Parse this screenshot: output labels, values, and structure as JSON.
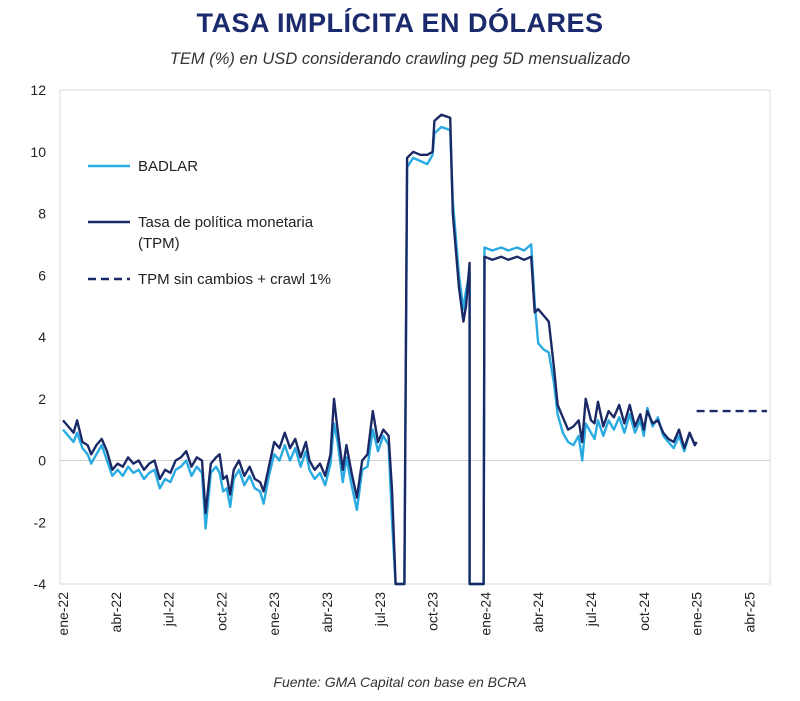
{
  "chart_data": {
    "type": "line",
    "title": "TASA IMPLÍCITA EN DÓLARES",
    "subtitle": "TEM (%) en USD considerando crawling peg 5D mensualizado",
    "source": "Fuente: GMA Capital con base en BCRA",
    "xlabel": "",
    "ylabel": "",
    "ylim": [
      -4,
      12
    ],
    "yticks": [
      -4,
      -2,
      0,
      2,
      4,
      6,
      8,
      10,
      12
    ],
    "xlim": [
      0,
      39
    ],
    "xticks": [
      {
        "x": 0,
        "label": "ene-22"
      },
      {
        "x": 3,
        "label": "abr-22"
      },
      {
        "x": 6,
        "label": "jul-22"
      },
      {
        "x": 9,
        "label": "oct-22"
      },
      {
        "x": 12,
        "label": "ene-23"
      },
      {
        "x": 15,
        "label": "abr-23"
      },
      {
        "x": 18,
        "label": "jul-23"
      },
      {
        "x": 21,
        "label": "oct-23"
      },
      {
        "x": 24,
        "label": "ene-24"
      },
      {
        "x": 27,
        "label": "abr-24"
      },
      {
        "x": 30,
        "label": "jul-24"
      },
      {
        "x": 33,
        "label": "oct-24"
      },
      {
        "x": 36,
        "label": "ene-25"
      },
      {
        "x": 39,
        "label": "abr-25"
      }
    ],
    "x_unit": "months since ene-22",
    "grid": "horizontal zero line only",
    "legend_position": "upper-left",
    "series": [
      {
        "name": "BADLAR",
        "color": "#29abe2",
        "style": "solid",
        "points": [
          [
            0,
            1.0
          ],
          [
            0.3,
            0.8
          ],
          [
            0.6,
            0.6
          ],
          [
            0.8,
            0.9
          ],
          [
            1.1,
            0.4
          ],
          [
            1.4,
            0.2
          ],
          [
            1.6,
            -0.1
          ],
          [
            1.9,
            0.2
          ],
          [
            2.2,
            0.5
          ],
          [
            2.5,
            0.0
          ],
          [
            2.8,
            -0.5
          ],
          [
            3.1,
            -0.3
          ],
          [
            3.4,
            -0.5
          ],
          [
            3.7,
            -0.2
          ],
          [
            4.0,
            -0.4
          ],
          [
            4.3,
            -0.3
          ],
          [
            4.6,
            -0.6
          ],
          [
            4.9,
            -0.4
          ],
          [
            5.2,
            -0.3
          ],
          [
            5.5,
            -0.9
          ],
          [
            5.8,
            -0.6
          ],
          [
            6.1,
            -0.7
          ],
          [
            6.4,
            -0.3
          ],
          [
            6.7,
            -0.2
          ],
          [
            7.0,
            0.0
          ],
          [
            7.3,
            -0.5
          ],
          [
            7.6,
            -0.2
          ],
          [
            7.9,
            -0.4
          ],
          [
            8.1,
            -2.2
          ],
          [
            8.4,
            -0.4
          ],
          [
            8.7,
            -0.2
          ],
          [
            8.9,
            -0.4
          ],
          [
            9.1,
            -1.0
          ],
          [
            9.3,
            -0.9
          ],
          [
            9.5,
            -1.5
          ],
          [
            9.7,
            -0.6
          ],
          [
            10.0,
            -0.3
          ],
          [
            10.3,
            -0.8
          ],
          [
            10.6,
            -0.5
          ],
          [
            10.9,
            -0.9
          ],
          [
            11.2,
            -1.0
          ],
          [
            11.4,
            -1.4
          ],
          [
            11.7,
            -0.5
          ],
          [
            12.0,
            0.2
          ],
          [
            12.3,
            0.0
          ],
          [
            12.6,
            0.5
          ],
          [
            12.9,
            0.0
          ],
          [
            13.2,
            0.4
          ],
          [
            13.5,
            -0.2
          ],
          [
            13.8,
            0.3
          ],
          [
            14.0,
            -0.3
          ],
          [
            14.3,
            -0.6
          ],
          [
            14.6,
            -0.4
          ],
          [
            14.9,
            -0.8
          ],
          [
            15.2,
            -0.1
          ],
          [
            15.4,
            1.2
          ],
          [
            15.6,
            0.6
          ],
          [
            15.9,
            -0.7
          ],
          [
            16.1,
            0.1
          ],
          [
            16.4,
            -0.8
          ],
          [
            16.7,
            -1.6
          ],
          [
            17.0,
            -0.3
          ],
          [
            17.3,
            -0.2
          ],
          [
            17.6,
            1.0
          ],
          [
            17.9,
            0.3
          ],
          [
            18.2,
            0.8
          ],
          [
            18.5,
            0.5
          ],
          [
            18.7,
            -2.0
          ],
          [
            18.9,
            -4.0
          ],
          [
            19.4,
            -4.0
          ],
          [
            19.55,
            9.5
          ],
          [
            19.9,
            9.8
          ],
          [
            20.3,
            9.7
          ],
          [
            20.7,
            9.6
          ],
          [
            21.0,
            9.9
          ],
          [
            21.1,
            10.6
          ],
          [
            21.5,
            10.8
          ],
          [
            22.0,
            10.7
          ],
          [
            22.15,
            8.4
          ],
          [
            22.5,
            6.0
          ],
          [
            22.75,
            4.9
          ],
          [
            22.9,
            5.5
          ],
          [
            23.1,
            6.1
          ],
          [
            23.1,
            -4.0
          ],
          [
            23.9,
            -4.0
          ],
          [
            23.95,
            6.9
          ],
          [
            24.4,
            6.8
          ],
          [
            24.9,
            6.9
          ],
          [
            25.3,
            6.8
          ],
          [
            25.8,
            6.9
          ],
          [
            26.2,
            6.8
          ],
          [
            26.6,
            7.0
          ],
          [
            26.8,
            5.1
          ],
          [
            27.0,
            3.8
          ],
          [
            27.3,
            3.6
          ],
          [
            27.6,
            3.5
          ],
          [
            27.9,
            2.5
          ],
          [
            28.1,
            1.5
          ],
          [
            28.4,
            0.9
          ],
          [
            28.7,
            0.6
          ],
          [
            29.0,
            0.5
          ],
          [
            29.3,
            0.8
          ],
          [
            29.5,
            0.0
          ],
          [
            29.7,
            1.2
          ],
          [
            30.0,
            0.9
          ],
          [
            30.2,
            0.7
          ],
          [
            30.4,
            1.3
          ],
          [
            30.7,
            0.8
          ],
          [
            31.0,
            1.3
          ],
          [
            31.3,
            1.0
          ],
          [
            31.6,
            1.4
          ],
          [
            31.9,
            0.9
          ],
          [
            32.2,
            1.5
          ],
          [
            32.5,
            0.9
          ],
          [
            32.8,
            1.3
          ],
          [
            33.0,
            0.8
          ],
          [
            33.2,
            1.7
          ],
          [
            33.5,
            1.1
          ],
          [
            33.8,
            1.4
          ],
          [
            34.1,
            0.8
          ],
          [
            34.4,
            0.6
          ],
          [
            34.7,
            0.4
          ],
          [
            35.0,
            0.8
          ],
          [
            35.3,
            0.3
          ],
          [
            35.6,
            0.9
          ],
          [
            35.9,
            0.5
          ],
          [
            36.0,
            0.6
          ]
        ]
      },
      {
        "name": "Tasa de política monetaria (TPM)",
        "legend_lines": [
          "Tasa de política monetaria",
          "(TPM)"
        ],
        "color": "#1b2a66",
        "style": "solid",
        "points": [
          [
            0,
            1.3
          ],
          [
            0.3,
            1.1
          ],
          [
            0.6,
            0.9
          ],
          [
            0.8,
            1.3
          ],
          [
            1.1,
            0.6
          ],
          [
            1.4,
            0.5
          ],
          [
            1.6,
            0.2
          ],
          [
            1.9,
            0.5
          ],
          [
            2.2,
            0.7
          ],
          [
            2.5,
            0.3
          ],
          [
            2.8,
            -0.3
          ],
          [
            3.1,
            -0.1
          ],
          [
            3.4,
            -0.2
          ],
          [
            3.7,
            0.1
          ],
          [
            4.0,
            -0.1
          ],
          [
            4.3,
            0.0
          ],
          [
            4.6,
            -0.3
          ],
          [
            4.9,
            -0.1
          ],
          [
            5.2,
            0.0
          ],
          [
            5.5,
            -0.6
          ],
          [
            5.8,
            -0.3
          ],
          [
            6.1,
            -0.4
          ],
          [
            6.4,
            0.0
          ],
          [
            6.7,
            0.1
          ],
          [
            7.0,
            0.3
          ],
          [
            7.3,
            -0.2
          ],
          [
            7.6,
            0.1
          ],
          [
            7.9,
            0.0
          ],
          [
            8.1,
            -1.7
          ],
          [
            8.4,
            -0.1
          ],
          [
            8.7,
            0.1
          ],
          [
            8.9,
            0.2
          ],
          [
            9.1,
            -0.6
          ],
          [
            9.3,
            -0.5
          ],
          [
            9.5,
            -1.1
          ],
          [
            9.7,
            -0.3
          ],
          [
            10.0,
            0.0
          ],
          [
            10.3,
            -0.5
          ],
          [
            10.6,
            -0.2
          ],
          [
            10.9,
            -0.6
          ],
          [
            11.2,
            -0.7
          ],
          [
            11.4,
            -1.0
          ],
          [
            11.7,
            -0.2
          ],
          [
            12.0,
            0.6
          ],
          [
            12.3,
            0.4
          ],
          [
            12.6,
            0.9
          ],
          [
            12.9,
            0.4
          ],
          [
            13.2,
            0.7
          ],
          [
            13.5,
            0.1
          ],
          [
            13.8,
            0.6
          ],
          [
            14.0,
            0.0
          ],
          [
            14.3,
            -0.3
          ],
          [
            14.6,
            -0.1
          ],
          [
            14.9,
            -0.5
          ],
          [
            15.2,
            0.2
          ],
          [
            15.4,
            2.0
          ],
          [
            15.6,
            1.0
          ],
          [
            15.9,
            -0.3
          ],
          [
            16.1,
            0.5
          ],
          [
            16.4,
            -0.4
          ],
          [
            16.7,
            -1.2
          ],
          [
            17.0,
            0.0
          ],
          [
            17.3,
            0.2
          ],
          [
            17.6,
            1.6
          ],
          [
            17.9,
            0.6
          ],
          [
            18.2,
            1.0
          ],
          [
            18.5,
            0.8
          ],
          [
            18.7,
            -1.0
          ],
          [
            18.9,
            -4.0
          ],
          [
            19.4,
            -4.0
          ],
          [
            19.55,
            9.8
          ],
          [
            19.9,
            10.0
          ],
          [
            20.3,
            9.9
          ],
          [
            20.7,
            9.9
          ],
          [
            21.0,
            10.0
          ],
          [
            21.1,
            11.0
          ],
          [
            21.5,
            11.2
          ],
          [
            22.0,
            11.1
          ],
          [
            22.15,
            8.0
          ],
          [
            22.5,
            5.6
          ],
          [
            22.75,
            4.5
          ],
          [
            22.9,
            5.0
          ],
          [
            23.1,
            6.4
          ],
          [
            23.1,
            -4.0
          ],
          [
            23.9,
            -4.0
          ],
          [
            23.95,
            6.6
          ],
          [
            24.4,
            6.5
          ],
          [
            24.9,
            6.6
          ],
          [
            25.3,
            6.5
          ],
          [
            25.8,
            6.6
          ],
          [
            26.2,
            6.5
          ],
          [
            26.6,
            6.6
          ],
          [
            26.8,
            4.8
          ],
          [
            27.0,
            4.9
          ],
          [
            27.3,
            4.7
          ],
          [
            27.6,
            4.5
          ],
          [
            27.9,
            3.0
          ],
          [
            28.1,
            1.8
          ],
          [
            28.4,
            1.4
          ],
          [
            28.7,
            1.0
          ],
          [
            29.0,
            1.1
          ],
          [
            29.3,
            1.3
          ],
          [
            29.5,
            0.6
          ],
          [
            29.7,
            2.0
          ],
          [
            30.0,
            1.3
          ],
          [
            30.2,
            1.2
          ],
          [
            30.4,
            1.9
          ],
          [
            30.7,
            1.1
          ],
          [
            31.0,
            1.6
          ],
          [
            31.3,
            1.4
          ],
          [
            31.6,
            1.8
          ],
          [
            31.9,
            1.2
          ],
          [
            32.2,
            1.8
          ],
          [
            32.5,
            1.1
          ],
          [
            32.8,
            1.5
          ],
          [
            33.0,
            1.0
          ],
          [
            33.2,
            1.6
          ],
          [
            33.5,
            1.2
          ],
          [
            33.8,
            1.3
          ],
          [
            34.1,
            0.9
          ],
          [
            34.4,
            0.7
          ],
          [
            34.7,
            0.6
          ],
          [
            35.0,
            1.0
          ],
          [
            35.3,
            0.4
          ],
          [
            35.6,
            0.9
          ],
          [
            35.9,
            0.5
          ],
          [
            36.0,
            0.6
          ]
        ]
      },
      {
        "name": "TPM sin cambios + crawl 1%",
        "color": "#1b2a66",
        "style": "dashed",
        "points": [
          [
            36.0,
            1.6
          ],
          [
            40.0,
            1.6
          ]
        ]
      }
    ]
  }
}
